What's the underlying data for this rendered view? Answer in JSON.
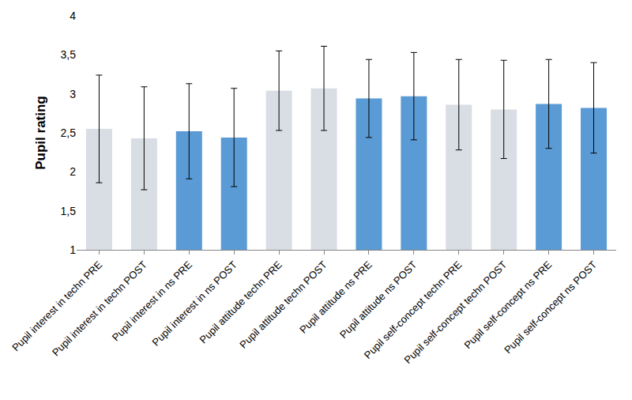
{
  "chart_data": {
    "type": "bar",
    "y_label": "Pupil rating",
    "categories": [
      "Pupil interest in techn PRE",
      "Pupil interest in techn POST",
      "Pupil interest in ns PRE",
      "Pupil interest in ns POST",
      "Pupil attitude techn PRE",
      "Pupil attitude techn POST",
      "Pupil attitude ns PRE",
      "Pupil attitude ns POST",
      "Pupil self-concept techn PRE",
      "Pupil self-concept techn POST",
      "Pupil self-concept ns PRE",
      "Pupil self-concept ns POST"
    ],
    "values": [
      2.55,
      2.43,
      2.52,
      2.44,
      3.04,
      3.07,
      2.94,
      2.97,
      2.86,
      2.8,
      2.87,
      2.82
    ],
    "errors": [
      0.69,
      0.66,
      0.61,
      0.63,
      0.51,
      0.54,
      0.5,
      0.56,
      0.58,
      0.63,
      0.57,
      0.58
    ],
    "colors": [
      "#d9dde4",
      "#d9dde4",
      "#5b9bd5",
      "#5b9bd5",
      "#d9dde4",
      "#d9dde4",
      "#5b9bd5",
      "#5b9bd5",
      "#d9dde4",
      "#d9dde4",
      "#5b9bd5",
      "#5b9bd5"
    ],
    "ylim": [
      1,
      4
    ],
    "yticks": [
      1,
      {
        "value": 1.5,
        "label": "1,5"
      },
      2,
      {
        "value": 2.5,
        "label": "2,5"
      },
      3,
      {
        "value": 3.5,
        "label": "3,5"
      },
      4
    ],
    "grid": false
  }
}
